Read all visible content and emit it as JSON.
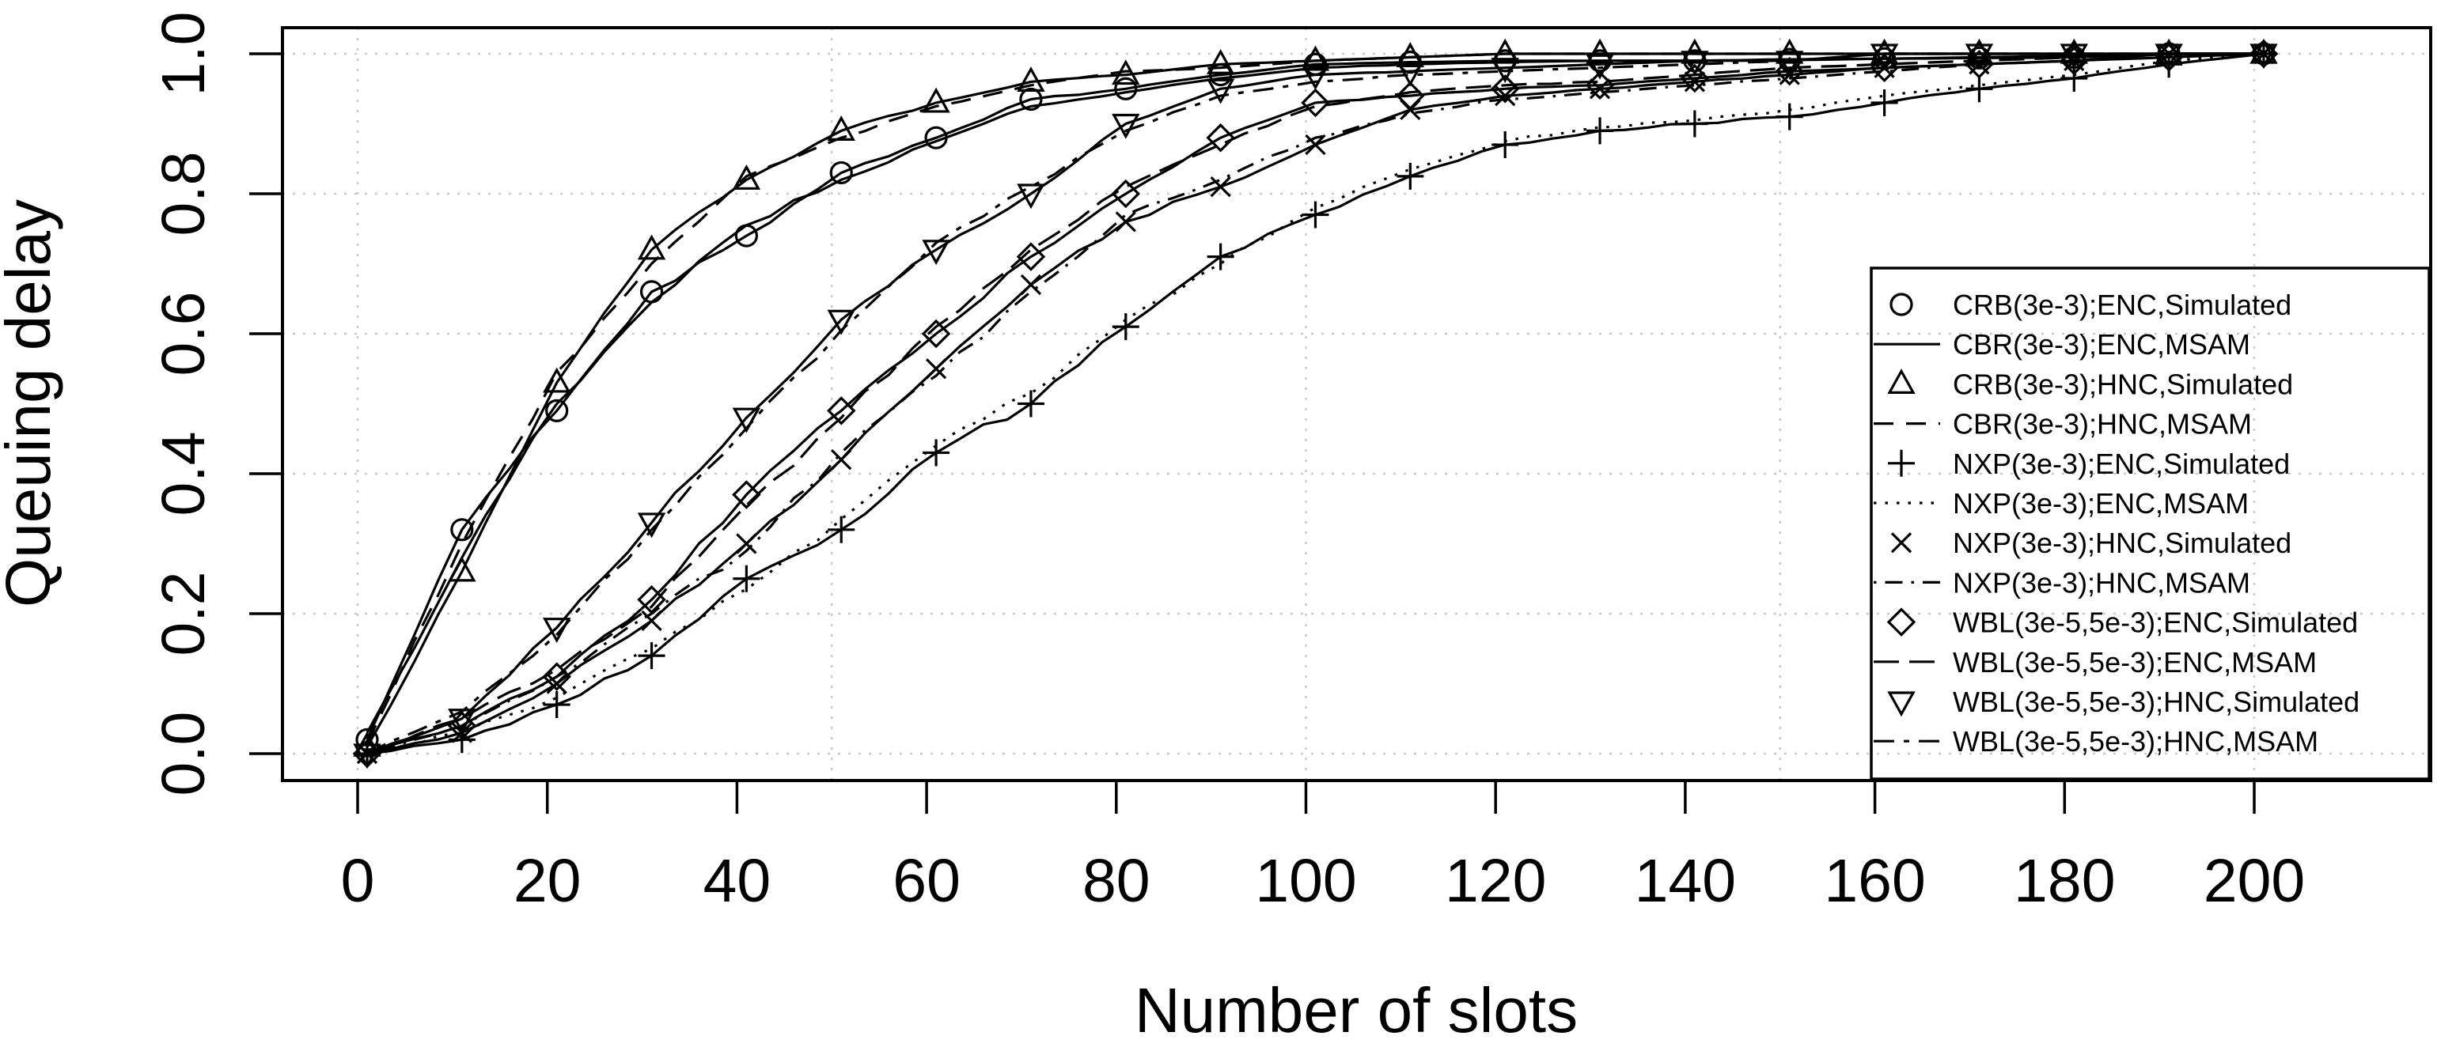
{
  "page": {
    "background": "#ffffff",
    "foreground": "#000000",
    "grid_color": "#c9c9c9"
  },
  "chart_data": {
    "type": "line",
    "title": "",
    "xlabel": "Number of slots",
    "ylabel": "Queuing delay",
    "xlim": [
      0,
      210
    ],
    "ylim": [
      0.0,
      1.0
    ],
    "grid": true,
    "legend_position": "inside-right",
    "x_ticks": [
      0,
      20,
      40,
      60,
      80,
      100,
      120,
      140,
      160,
      180,
      200
    ],
    "y_ticks": [
      {
        "value": 0.0,
        "label": "0.0"
      },
      {
        "value": 0.2,
        "label": "0.2"
      },
      {
        "value": 0.4,
        "label": "0.4"
      },
      {
        "value": 0.6,
        "label": "0.6"
      },
      {
        "value": 0.8,
        "label": "0.8"
      },
      {
        "value": 1.0,
        "label": "1.0"
      }
    ],
    "x_gridlines": [
      0,
      50,
      100,
      150,
      200
    ],
    "y_gridlines": [
      0.0,
      0.2,
      0.4,
      0.6,
      0.8,
      1.0
    ],
    "x": [
      1,
      11,
      21,
      31,
      41,
      51,
      61,
      71,
      81,
      91,
      101,
      111,
      121,
      131,
      141,
      151,
      161,
      171,
      181,
      191,
      201
    ],
    "series": [
      {
        "name": "CRB(3e-3);ENC,Simulated",
        "kind": "simulated",
        "marker": "circle",
        "values": [
          0.02,
          0.32,
          0.49,
          0.66,
          0.74,
          0.83,
          0.88,
          0.935,
          0.95,
          0.97,
          0.985,
          0.988,
          0.99,
          0.99,
          0.99,
          0.992,
          0.993,
          0.994,
          0.995,
          1.0,
          1.0
        ]
      },
      {
        "name": "CBR(3e-3);ENC,MSAM",
        "kind": "msam",
        "linetype": "solid",
        "values": [
          0.03,
          0.28,
          0.5,
          0.645,
          0.755,
          0.82,
          0.875,
          0.925,
          0.945,
          0.965,
          0.98,
          0.985,
          0.988,
          0.99,
          0.99,
          0.991,
          0.993,
          0.995,
          0.997,
          1.0,
          1.0
        ]
      },
      {
        "name": "CRB(3e-3);HNC,Simulated",
        "kind": "simulated",
        "marker": "triangle-up",
        "values": [
          0.01,
          0.26,
          0.53,
          0.72,
          0.82,
          0.89,
          0.93,
          0.96,
          0.97,
          0.985,
          0.99,
          0.995,
          1.0,
          1.0,
          1.0,
          1.0,
          1.0,
          1.0,
          1.0,
          1.0,
          1.0
        ]
      },
      {
        "name": "CBR(3e-3);HNC,MSAM",
        "kind": "msam",
        "linetype": "dashed",
        "values": [
          0.015,
          0.3,
          0.545,
          0.7,
          0.825,
          0.88,
          0.925,
          0.955,
          0.975,
          0.98,
          0.99,
          0.995,
          1.0,
          1.0,
          1.0,
          1.0,
          1.0,
          1.0,
          1.0,
          1.0,
          1.0
        ]
      },
      {
        "name": "NXP(3e-3);ENC,Simulated",
        "kind": "simulated",
        "marker": "plus",
        "values": [
          0.0,
          0.02,
          0.07,
          0.14,
          0.25,
          0.32,
          0.43,
          0.5,
          0.61,
          0.71,
          0.77,
          0.825,
          0.87,
          0.89,
          0.9,
          0.91,
          0.93,
          0.95,
          0.965,
          0.985,
          1.0
        ]
      },
      {
        "name": "NXP(3e-3);ENC,MSAM",
        "kind": "msam",
        "linetype": "dotted",
        "values": [
          0.0,
          0.03,
          0.08,
          0.15,
          0.235,
          0.335,
          0.44,
          0.515,
          0.62,
          0.7,
          0.78,
          0.835,
          0.875,
          0.895,
          0.905,
          0.92,
          0.94,
          0.955,
          0.97,
          0.99,
          1.0
        ]
      },
      {
        "name": "NXP(3e-3);HNC,Simulated",
        "kind": "simulated",
        "marker": "x",
        "values": [
          0.0,
          0.03,
          0.1,
          0.19,
          0.3,
          0.42,
          0.55,
          0.67,
          0.76,
          0.81,
          0.87,
          0.92,
          0.94,
          0.95,
          0.96,
          0.97,
          0.98,
          0.985,
          0.99,
          1.0,
          1.0
        ]
      },
      {
        "name": "NXP(3e-3);HNC,MSAM",
        "kind": "msam",
        "linetype": "dotdash",
        "values": [
          0.0,
          0.04,
          0.11,
          0.2,
          0.29,
          0.43,
          0.54,
          0.66,
          0.77,
          0.82,
          0.88,
          0.915,
          0.935,
          0.945,
          0.955,
          0.965,
          0.975,
          0.985,
          0.99,
          1.0,
          1.0
        ]
      },
      {
        "name": "WBL(3e-5,5e-3);ENC,Simulated",
        "kind": "simulated",
        "marker": "diamond",
        "values": [
          0.0,
          0.04,
          0.11,
          0.22,
          0.37,
          0.49,
          0.6,
          0.71,
          0.8,
          0.88,
          0.93,
          0.94,
          0.95,
          0.955,
          0.965,
          0.975,
          0.98,
          0.985,
          0.99,
          0.995,
          1.0
        ]
      },
      {
        "name": "WBL(3e-5,5e-3);ENC,MSAM",
        "kind": "msam",
        "linetype": "longdash",
        "values": [
          0.0,
          0.05,
          0.12,
          0.21,
          0.355,
          0.48,
          0.61,
          0.72,
          0.81,
          0.87,
          0.925,
          0.945,
          0.955,
          0.96,
          0.97,
          0.98,
          0.985,
          0.99,
          0.995,
          1.0,
          1.0
        ]
      },
      {
        "name": "WBL(3e-5,5e-3);HNC,Simulated",
        "kind": "simulated",
        "marker": "triangle-down",
        "values": [
          0.0,
          0.05,
          0.18,
          0.33,
          0.48,
          0.62,
          0.72,
          0.8,
          0.9,
          0.95,
          0.97,
          0.975,
          0.98,
          0.985,
          0.99,
          0.99,
          1.0,
          1.0,
          1.0,
          1.0,
          1.0
        ]
      },
      {
        "name": "WBL(3e-5,5e-3);HNC,MSAM",
        "kind": "msam",
        "linetype": "twodash",
        "values": [
          0.0,
          0.06,
          0.17,
          0.32,
          0.465,
          0.605,
          0.73,
          0.81,
          0.89,
          0.94,
          0.96,
          0.97,
          0.975,
          0.98,
          0.985,
          0.99,
          1.0,
          1.0,
          1.0,
          1.0,
          1.0
        ]
      }
    ]
  }
}
